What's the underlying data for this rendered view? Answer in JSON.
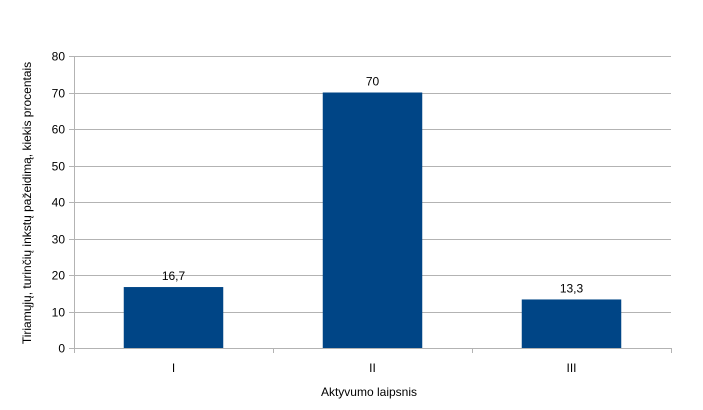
{
  "chart_data": {
    "type": "bar",
    "categories": [
      "I",
      "II",
      "III"
    ],
    "values": [
      16.7,
      70,
      13.3
    ],
    "data_labels": [
      "16,7",
      "70",
      "13,3"
    ],
    "xlabel": "Aktyvumo laipsnis",
    "ylabel": "Tiriamųjų, turinčių inkstų pažeidimą, kiekis procentais",
    "ylim": [
      0,
      80
    ],
    "yticks": [
      0,
      10,
      20,
      30,
      40,
      50,
      60,
      70,
      80
    ],
    "grid": true,
    "legend": "none",
    "bar_color": "#004586",
    "grid_color": "#b3b3b3"
  }
}
